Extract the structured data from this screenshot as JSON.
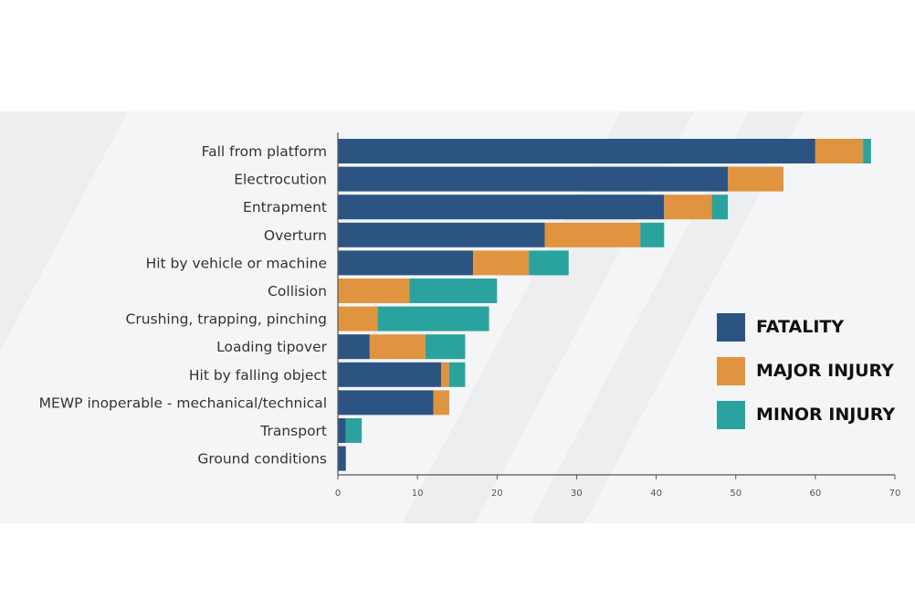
{
  "chart_data": {
    "type": "bar",
    "orientation": "horizontal",
    "stacked": true,
    "categories": [
      "Fall from platform",
      "Electrocution",
      "Entrapment",
      "Overturn",
      "Hit by vehicle or machine",
      "Collision",
      "Crushing, trapping, pinching",
      "Loading tipover",
      "Hit by falling object",
      "MEWP inoperable - mechanical/technical",
      "Transport",
      "Ground conditions"
    ],
    "series": [
      {
        "name": "FATALITY",
        "color": "#2c5483",
        "values": [
          60,
          49,
          41,
          26,
          17,
          0,
          0,
          4,
          13,
          12,
          1,
          1
        ]
      },
      {
        "name": "MAJOR INJURY",
        "color": "#e0943f",
        "values": [
          6,
          7,
          6,
          12,
          7,
          9,
          5,
          7,
          1,
          2,
          0,
          0
        ]
      },
      {
        "name": "MINOR INJURY",
        "color": "#2aa39e",
        "values": [
          1,
          0,
          2,
          3,
          5,
          11,
          14,
          5,
          2,
          0,
          2,
          0
        ]
      }
    ],
    "xlim": [
      0,
      70
    ],
    "xticks": [
      "0",
      "10",
      "20",
      "30",
      "40",
      "50",
      "60",
      "70"
    ],
    "grid": false,
    "legend_position": "right"
  }
}
